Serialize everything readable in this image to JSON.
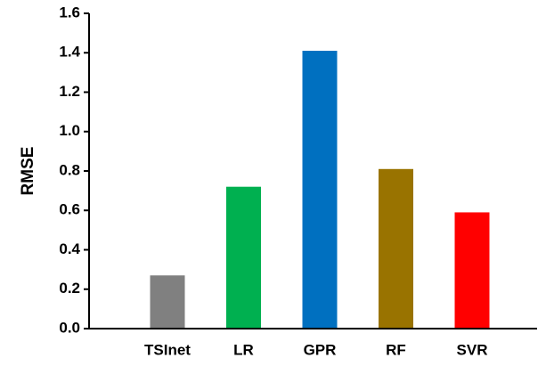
{
  "chart_data": {
    "type": "bar",
    "title": "",
    "xlabel": "",
    "ylabel": "RMSE",
    "categories": [
      "TSInet",
      "LR",
      "GPR",
      "RF",
      "SVR"
    ],
    "values": [
      0.27,
      0.72,
      1.41,
      0.81,
      0.59
    ],
    "colors": [
      "#808080",
      "#00b050",
      "#0070c0",
      "#997300",
      "#ff0000"
    ],
    "ylim": [
      0.0,
      1.6
    ],
    "yticks": [
      "0.0",
      "0.2",
      "0.4",
      "0.6",
      "0.8",
      "1.0",
      "1.2",
      "1.4",
      "1.6"
    ],
    "grid": false,
    "legend": "none"
  }
}
